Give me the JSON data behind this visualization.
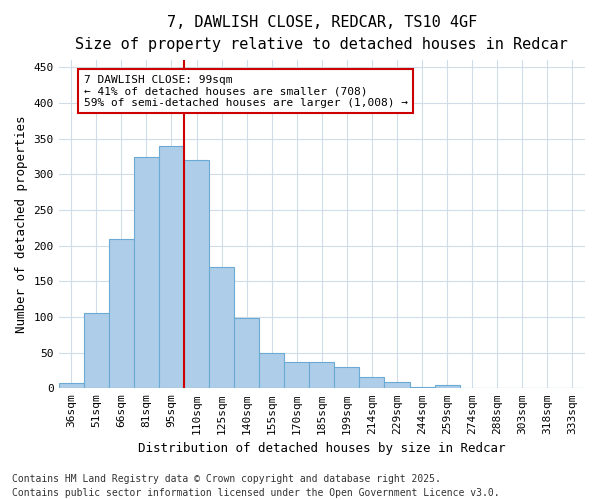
{
  "title1": "7, DAWLISH CLOSE, REDCAR, TS10 4GF",
  "title2": "Size of property relative to detached houses in Redcar",
  "xlabel": "Distribution of detached houses by size in Redcar",
  "ylabel": "Number of detached properties",
  "categories": [
    "36sqm",
    "51sqm",
    "66sqm",
    "81sqm",
    "95sqm",
    "110sqm",
    "125sqm",
    "140sqm",
    "155sqm",
    "170sqm",
    "185sqm",
    "199sqm",
    "214sqm",
    "229sqm",
    "244sqm",
    "259sqm",
    "274sqm",
    "288sqm",
    "303sqm",
    "318sqm",
    "333sqm"
  ],
  "values": [
    7,
    106,
    210,
    325,
    340,
    320,
    170,
    98,
    50,
    37,
    37,
    30,
    16,
    9,
    2,
    5,
    1,
    0,
    0,
    0,
    1
  ],
  "bar_color": "#aecde8",
  "bar_edge_color": "#6aaad4",
  "vline_x": 4.5,
  "vline_color": "#cc0000",
  "annotation_text": "7 DAWLISH CLOSE: 99sqm\n← 41% of detached houses are smaller (708)\n59% of semi-detached houses are larger (1,008) →",
  "annotation_box_color": "#ffffff",
  "annotation_box_edge": "#cc0000",
  "footnote1": "Contains HM Land Registry data © Crown copyright and database right 2025.",
  "footnote2": "Contains public sector information licensed under the Open Government Licence v3.0.",
  "bg_color": "#ffffff",
  "plot_bg_color": "#ffffff",
  "grid_color": "#d0dce8",
  "ylim": [
    0,
    460
  ],
  "yticks": [
    0,
    50,
    100,
    150,
    200,
    250,
    300,
    350,
    400,
    450
  ],
  "title_fontsize": 11,
  "subtitle_fontsize": 10,
  "axis_label_fontsize": 9,
  "tick_fontsize": 8,
  "annot_fontsize": 8,
  "footnote_fontsize": 7
}
